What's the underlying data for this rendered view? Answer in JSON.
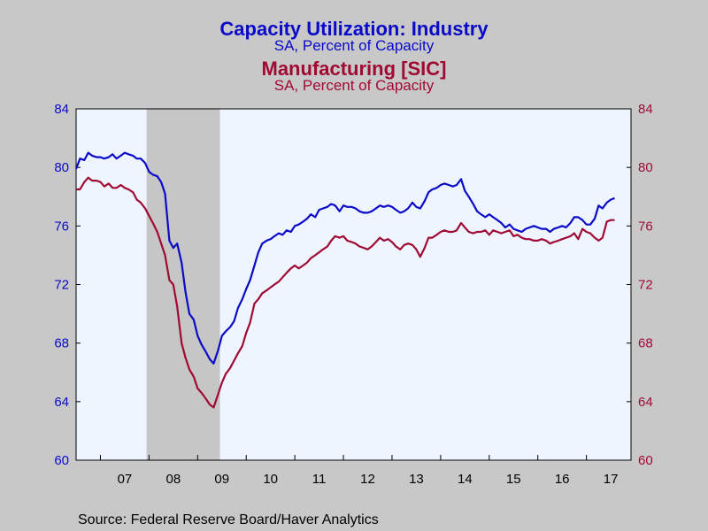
{
  "chart_data": {
    "type": "line",
    "titles": [
      {
        "title": "Capacity Utilization: Industry",
        "subtitle": "SA, Percent of Capacity",
        "color": "#0a0ac8"
      },
      {
        "title": "Manufacturing [SIC]",
        "subtitle": "SA, Percent of Capacity",
        "color": "#a00a32"
      }
    ],
    "source": "Source:  Federal Reserve Board/Haver Analytics",
    "x_range": [
      2006.5,
      2017.917
    ],
    "x_tick_labels": [
      "07",
      "08",
      "09",
      "10",
      "11",
      "12",
      "13",
      "14",
      "15",
      "16",
      "17"
    ],
    "y_left": {
      "min": 60,
      "max": 84,
      "ticks": [
        60,
        64,
        68,
        72,
        76,
        80,
        84
      ],
      "color": "#0a0ac8"
    },
    "y_right": {
      "min": 60,
      "max": 84,
      "ticks": [
        60,
        64,
        68,
        72,
        76,
        80,
        84
      ],
      "color": "#a00a32"
    },
    "recession": {
      "start": 2007.95,
      "end": 2009.46
    },
    "colors": {
      "plot_bg": "#eef5ff",
      "page_bg": "#c8c8c8",
      "recession": "#c6c6c6"
    },
    "series": [
      {
        "name": "Capacity Utilization: Industry",
        "color": "#0a0ac8",
        "axis": "left",
        "points": [
          [
            2006.5,
            79.9
          ],
          [
            2006.58,
            80.6
          ],
          [
            2006.67,
            80.5
          ],
          [
            2006.75,
            81.0
          ],
          [
            2006.83,
            80.8
          ],
          [
            2006.92,
            80.7
          ],
          [
            2007.0,
            80.7
          ],
          [
            2007.08,
            80.6
          ],
          [
            2007.17,
            80.7
          ],
          [
            2007.25,
            80.9
          ],
          [
            2007.33,
            80.6
          ],
          [
            2007.42,
            80.8
          ],
          [
            2007.5,
            81.0
          ],
          [
            2007.58,
            80.9
          ],
          [
            2007.67,
            80.8
          ],
          [
            2007.75,
            80.6
          ],
          [
            2007.83,
            80.6
          ],
          [
            2007.92,
            80.3
          ],
          [
            2008.0,
            79.7
          ],
          [
            2008.08,
            79.5
          ],
          [
            2008.17,
            79.4
          ],
          [
            2008.25,
            79.0
          ],
          [
            2008.33,
            78.2
          ],
          [
            2008.42,
            75.0
          ],
          [
            2008.5,
            74.5
          ],
          [
            2008.58,
            74.8
          ],
          [
            2008.67,
            73.5
          ],
          [
            2008.75,
            71.5
          ],
          [
            2008.83,
            70.0
          ],
          [
            2008.92,
            69.6
          ],
          [
            2009.0,
            68.5
          ],
          [
            2009.08,
            67.9
          ],
          [
            2009.17,
            67.4
          ],
          [
            2009.25,
            66.9
          ],
          [
            2009.33,
            66.6
          ],
          [
            2009.42,
            67.5
          ],
          [
            2009.5,
            68.5
          ],
          [
            2009.58,
            68.8
          ],
          [
            2009.67,
            69.1
          ],
          [
            2009.75,
            69.5
          ],
          [
            2009.83,
            70.4
          ],
          [
            2009.92,
            71.0
          ],
          [
            2010.0,
            71.7
          ],
          [
            2010.08,
            72.3
          ],
          [
            2010.17,
            73.3
          ],
          [
            2010.25,
            74.2
          ],
          [
            2010.33,
            74.8
          ],
          [
            2010.42,
            75.0
          ],
          [
            2010.5,
            75.1
          ],
          [
            2010.58,
            75.3
          ],
          [
            2010.67,
            75.5
          ],
          [
            2010.75,
            75.4
          ],
          [
            2010.83,
            75.7
          ],
          [
            2010.92,
            75.6
          ],
          [
            2011.0,
            76.0
          ],
          [
            2011.08,
            76.1
          ],
          [
            2011.17,
            76.3
          ],
          [
            2011.25,
            76.5
          ],
          [
            2011.33,
            76.8
          ],
          [
            2011.42,
            76.6
          ],
          [
            2011.5,
            77.1
          ],
          [
            2011.58,
            77.2
          ],
          [
            2011.67,
            77.3
          ],
          [
            2011.75,
            77.5
          ],
          [
            2011.83,
            77.4
          ],
          [
            2011.92,
            77.0
          ],
          [
            2012.0,
            77.4
          ],
          [
            2012.08,
            77.3
          ],
          [
            2012.17,
            77.3
          ],
          [
            2012.25,
            77.2
          ],
          [
            2012.33,
            77.0
          ],
          [
            2012.42,
            76.9
          ],
          [
            2012.5,
            76.9
          ],
          [
            2012.58,
            77.0
          ],
          [
            2012.67,
            77.2
          ],
          [
            2012.75,
            77.4
          ],
          [
            2012.83,
            77.3
          ],
          [
            2012.92,
            77.4
          ],
          [
            2013.0,
            77.3
          ],
          [
            2013.08,
            77.1
          ],
          [
            2013.17,
            76.9
          ],
          [
            2013.25,
            77.0
          ],
          [
            2013.33,
            77.2
          ],
          [
            2013.42,
            77.6
          ],
          [
            2013.5,
            77.3
          ],
          [
            2013.58,
            77.2
          ],
          [
            2013.67,
            77.7
          ],
          [
            2013.75,
            78.3
          ],
          [
            2013.83,
            78.5
          ],
          [
            2013.92,
            78.6
          ],
          [
            2014.0,
            78.8
          ],
          [
            2014.08,
            78.9
          ],
          [
            2014.17,
            78.8
          ],
          [
            2014.25,
            78.7
          ],
          [
            2014.33,
            78.8
          ],
          [
            2014.42,
            79.2
          ],
          [
            2014.5,
            78.4
          ],
          [
            2014.58,
            78.0
          ],
          [
            2014.67,
            77.5
          ],
          [
            2014.75,
            77.0
          ],
          [
            2014.83,
            76.8
          ],
          [
            2014.92,
            76.6
          ],
          [
            2015.0,
            76.8
          ],
          [
            2015.08,
            76.6
          ],
          [
            2015.17,
            76.4
          ],
          [
            2015.25,
            76.2
          ],
          [
            2015.33,
            75.9
          ],
          [
            2015.42,
            76.1
          ],
          [
            2015.5,
            75.8
          ],
          [
            2015.58,
            75.7
          ],
          [
            2015.67,
            75.6
          ],
          [
            2015.75,
            75.8
          ],
          [
            2015.83,
            75.9
          ],
          [
            2015.92,
            76.0
          ],
          [
            2016.0,
            75.9
          ],
          [
            2016.08,
            75.8
          ],
          [
            2016.17,
            75.8
          ],
          [
            2016.25,
            75.6
          ],
          [
            2016.33,
            75.8
          ],
          [
            2016.42,
            75.9
          ],
          [
            2016.5,
            76.0
          ],
          [
            2016.58,
            75.9
          ],
          [
            2016.67,
            76.2
          ],
          [
            2016.75,
            76.6
          ],
          [
            2016.83,
            76.6
          ],
          [
            2016.92,
            76.4
          ],
          [
            2017.0,
            76.1
          ],
          [
            2017.08,
            76.1
          ],
          [
            2017.17,
            76.5
          ],
          [
            2017.25,
            77.4
          ],
          [
            2017.33,
            77.2
          ],
          [
            2017.42,
            77.6
          ],
          [
            2017.5,
            77.8
          ],
          [
            2017.58,
            77.9
          ]
        ]
      },
      {
        "name": "Manufacturing [SIC]",
        "color": "#a00a32",
        "axis": "right",
        "points": [
          [
            2006.5,
            78.5
          ],
          [
            2006.58,
            78.5
          ],
          [
            2006.67,
            79.0
          ],
          [
            2006.75,
            79.3
          ],
          [
            2006.83,
            79.1
          ],
          [
            2006.92,
            79.1
          ],
          [
            2007.0,
            79.0
          ],
          [
            2007.08,
            78.7
          ],
          [
            2007.17,
            78.9
          ],
          [
            2007.25,
            78.6
          ],
          [
            2007.33,
            78.6
          ],
          [
            2007.42,
            78.8
          ],
          [
            2007.5,
            78.6
          ],
          [
            2007.58,
            78.5
          ],
          [
            2007.67,
            78.3
          ],
          [
            2007.75,
            77.8
          ],
          [
            2007.83,
            77.6
          ],
          [
            2007.92,
            77.2
          ],
          [
            2008.0,
            76.7
          ],
          [
            2008.08,
            76.2
          ],
          [
            2008.17,
            75.6
          ],
          [
            2008.25,
            74.8
          ],
          [
            2008.33,
            74.0
          ],
          [
            2008.42,
            72.3
          ],
          [
            2008.5,
            72.0
          ],
          [
            2008.58,
            70.5
          ],
          [
            2008.67,
            68.0
          ],
          [
            2008.75,
            67.0
          ],
          [
            2008.83,
            66.2
          ],
          [
            2008.92,
            65.7
          ],
          [
            2009.0,
            64.9
          ],
          [
            2009.08,
            64.6
          ],
          [
            2009.17,
            64.2
          ],
          [
            2009.25,
            63.8
          ],
          [
            2009.33,
            63.6
          ],
          [
            2009.42,
            64.5
          ],
          [
            2009.5,
            65.3
          ],
          [
            2009.58,
            65.9
          ],
          [
            2009.67,
            66.3
          ],
          [
            2009.75,
            66.8
          ],
          [
            2009.83,
            67.3
          ],
          [
            2009.92,
            67.8
          ],
          [
            2010.0,
            68.7
          ],
          [
            2010.08,
            69.4
          ],
          [
            2010.17,
            70.7
          ],
          [
            2010.25,
            71.0
          ],
          [
            2010.33,
            71.4
          ],
          [
            2010.42,
            71.6
          ],
          [
            2010.5,
            71.8
          ],
          [
            2010.58,
            72.0
          ],
          [
            2010.67,
            72.2
          ],
          [
            2010.75,
            72.5
          ],
          [
            2010.83,
            72.8
          ],
          [
            2010.92,
            73.1
          ],
          [
            2011.0,
            73.3
          ],
          [
            2011.08,
            73.1
          ],
          [
            2011.17,
            73.3
          ],
          [
            2011.25,
            73.5
          ],
          [
            2011.33,
            73.8
          ],
          [
            2011.42,
            74.0
          ],
          [
            2011.5,
            74.2
          ],
          [
            2011.58,
            74.4
          ],
          [
            2011.67,
            74.6
          ],
          [
            2011.75,
            75.0
          ],
          [
            2011.83,
            75.3
          ],
          [
            2011.92,
            75.2
          ],
          [
            2012.0,
            75.3
          ],
          [
            2012.08,
            75.0
          ],
          [
            2012.17,
            74.9
          ],
          [
            2012.25,
            74.8
          ],
          [
            2012.33,
            74.6
          ],
          [
            2012.42,
            74.5
          ],
          [
            2012.5,
            74.4
          ],
          [
            2012.58,
            74.6
          ],
          [
            2012.67,
            74.9
          ],
          [
            2012.75,
            75.2
          ],
          [
            2012.83,
            75.0
          ],
          [
            2012.92,
            75.1
          ],
          [
            2013.0,
            74.9
          ],
          [
            2013.08,
            74.6
          ],
          [
            2013.17,
            74.4
          ],
          [
            2013.25,
            74.7
          ],
          [
            2013.33,
            74.8
          ],
          [
            2013.42,
            74.7
          ],
          [
            2013.5,
            74.4
          ],
          [
            2013.58,
            73.9
          ],
          [
            2013.67,
            74.5
          ],
          [
            2013.75,
            75.2
          ],
          [
            2013.83,
            75.2
          ],
          [
            2013.92,
            75.4
          ],
          [
            2014.0,
            75.6
          ],
          [
            2014.08,
            75.7
          ],
          [
            2014.17,
            75.6
          ],
          [
            2014.25,
            75.6
          ],
          [
            2014.33,
            75.7
          ],
          [
            2014.42,
            76.2
          ],
          [
            2014.5,
            75.9
          ],
          [
            2014.58,
            75.6
          ],
          [
            2014.67,
            75.5
          ],
          [
            2014.75,
            75.6
          ],
          [
            2014.83,
            75.6
          ],
          [
            2014.92,
            75.7
          ],
          [
            2015.0,
            75.4
          ],
          [
            2015.08,
            75.7
          ],
          [
            2015.17,
            75.6
          ],
          [
            2015.25,
            75.5
          ],
          [
            2015.33,
            75.6
          ],
          [
            2015.42,
            75.7
          ],
          [
            2015.5,
            75.3
          ],
          [
            2015.58,
            75.4
          ],
          [
            2015.67,
            75.2
          ],
          [
            2015.75,
            75.1
          ],
          [
            2015.83,
            75.1
          ],
          [
            2015.92,
            75.0
          ],
          [
            2016.0,
            75.0
          ],
          [
            2016.08,
            75.1
          ],
          [
            2016.17,
            75.0
          ],
          [
            2016.25,
            74.8
          ],
          [
            2016.33,
            74.9
          ],
          [
            2016.42,
            75.0
          ],
          [
            2016.5,
            75.1
          ],
          [
            2016.58,
            75.2
          ],
          [
            2016.67,
            75.3
          ],
          [
            2016.75,
            75.5
          ],
          [
            2016.83,
            75.1
          ],
          [
            2016.92,
            75.8
          ],
          [
            2017.0,
            75.6
          ],
          [
            2017.08,
            75.5
          ],
          [
            2017.17,
            75.2
          ],
          [
            2017.25,
            75.0
          ],
          [
            2017.33,
            75.2
          ],
          [
            2017.42,
            76.3
          ],
          [
            2017.5,
            76.4
          ],
          [
            2017.58,
            76.4
          ]
        ]
      }
    ]
  }
}
